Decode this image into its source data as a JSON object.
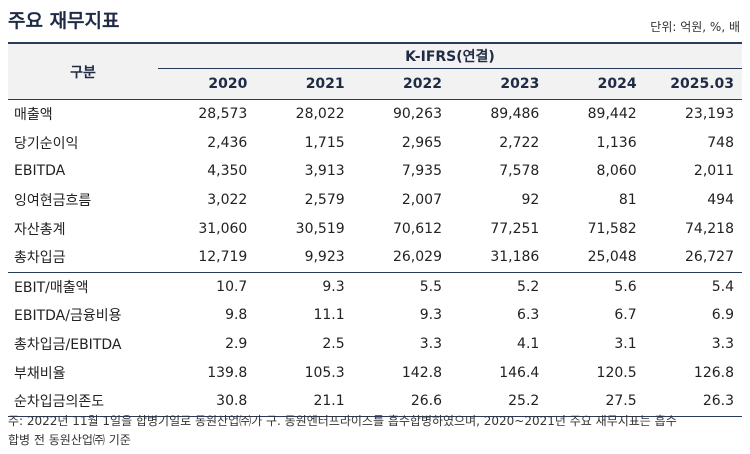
{
  "title": "주요 재무지표",
  "unit": "단위: 억원, %, 배",
  "header": {
    "row_label": "구분",
    "group": "K-IFRS(연결)",
    "years": [
      "2020",
      "2021",
      "2022",
      "2023",
      "2024",
      "2025.03"
    ]
  },
  "rows": [
    {
      "label": "매출액",
      "values": [
        "28,573",
        "28,022",
        "90,263",
        "89,486",
        "89,442",
        "23,193"
      ]
    },
    {
      "label": "당기순이익",
      "values": [
        "2,436",
        "1,715",
        "2,965",
        "2,722",
        "1,136",
        "748"
      ]
    },
    {
      "label": "EBITDA",
      "values": [
        "4,350",
        "3,913",
        "7,935",
        "7,578",
        "8,060",
        "2,011"
      ]
    },
    {
      "label": "잉여현금흐름",
      "values": [
        "3,022",
        "2,579",
        "2,007",
        "92",
        "81",
        "494"
      ]
    },
    {
      "label": "자산총계",
      "values": [
        "31,060",
        "30,519",
        "70,612",
        "77,251",
        "71,582",
        "74,218"
      ]
    },
    {
      "label": "총차입금",
      "values": [
        "12,719",
        "9,923",
        "26,029",
        "31,186",
        "25,048",
        "26,727"
      ]
    },
    {
      "label": "EBIT/매출액",
      "values": [
        "10.7",
        "9.3",
        "5.5",
        "5.2",
        "5.6",
        "5.4"
      ]
    },
    {
      "label": "EBITDA/금융비용",
      "values": [
        "9.8",
        "11.1",
        "9.3",
        "6.3",
        "6.7",
        "6.9"
      ]
    },
    {
      "label": "총차입금/EBITDA",
      "values": [
        "2.9",
        "2.5",
        "3.3",
        "4.1",
        "3.1",
        "3.3"
      ]
    },
    {
      "label": "부채비율",
      "values": [
        "139.8",
        "105.3",
        "142.8",
        "146.4",
        "120.5",
        "126.8"
      ]
    },
    {
      "label": "순차입금의존도",
      "values": [
        "30.8",
        "21.1",
        "26.6",
        "25.2",
        "27.5",
        "26.3"
      ]
    }
  ],
  "note": {
    "line1": "주: 2022년 11월 1일을 합병기일로 동원산업㈜가 구. 동원엔터프라이즈를 흡수합병하였으며, 2020~2021년 주요 재무지표는 흡수",
    "line2": "합병 전 동원산업㈜ 기준"
  }
}
